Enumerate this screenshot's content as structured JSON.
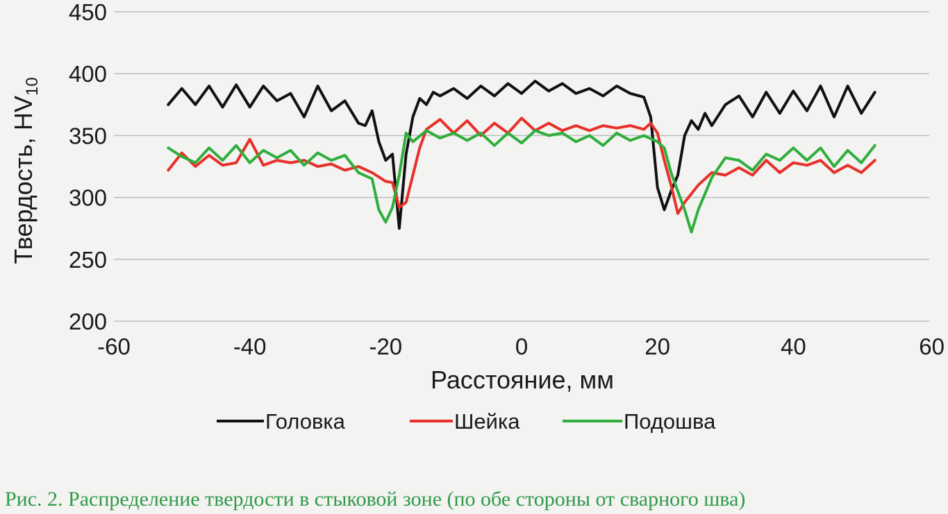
{
  "caption": "Рис. 2. Распределение твердости в стыковой зоне (по обе стороны от сварного шва)",
  "colors": {
    "Головка": "#111111",
    "Шейка": "#e8302a",
    "Подошва": "#2fae3c",
    "grid": "#bdbdbd",
    "caption": "#2f9a48"
  },
  "chart_data": {
    "type": "line",
    "title": "",
    "xlabel": "Расстояние, мм",
    "ylabel": "Твердость, HV",
    "ylabel_subscript": "10",
    "xlim": [
      -60,
      60
    ],
    "ylim": [
      200,
      450
    ],
    "x_ticks": [
      "-60",
      "-40",
      "-20",
      "0",
      "20",
      "40",
      "60"
    ],
    "y_ticks": [
      "200",
      "250",
      "300",
      "350",
      "400",
      "450"
    ],
    "grid": "horizontal",
    "legend_position": "bottom",
    "series": [
      {
        "name": "Головка",
        "x": [
          -52,
          -50,
          -48,
          -46,
          -44,
          -42,
          -40,
          -38,
          -36,
          -34,
          -32,
          -30,
          -28,
          -26,
          -24,
          -23,
          -22,
          -21,
          -20,
          -19,
          -18,
          -17,
          -16,
          -15,
          -14,
          -13,
          -12,
          -10,
          -8,
          -6,
          -4,
          -2,
          0,
          2,
          4,
          6,
          8,
          10,
          12,
          14,
          16,
          18,
          19,
          20,
          21,
          22,
          23,
          24,
          25,
          26,
          27,
          28,
          30,
          32,
          34,
          36,
          38,
          40,
          42,
          44,
          46,
          48,
          50,
          52
        ],
        "values": [
          375,
          388,
          375,
          390,
          373,
          391,
          373,
          390,
          378,
          384,
          365,
          390,
          370,
          378,
          360,
          358,
          370,
          345,
          330,
          335,
          275,
          335,
          365,
          380,
          375,
          385,
          382,
          388,
          380,
          390,
          382,
          392,
          384,
          394,
          386,
          392,
          384,
          388,
          382,
          390,
          384,
          381,
          365,
          308,
          290,
          305,
          318,
          350,
          362,
          355,
          368,
          358,
          375,
          382,
          365,
          385,
          368,
          386,
          370,
          390,
          365,
          390,
          368,
          385
        ]
      },
      {
        "name": "Шейка",
        "x": [
          -52,
          -50,
          -48,
          -46,
          -44,
          -42,
          -40,
          -38,
          -36,
          -34,
          -32,
          -30,
          -28,
          -26,
          -24,
          -22,
          -20,
          -19,
          -18,
          -17,
          -16,
          -15,
          -14,
          -12,
          -10,
          -8,
          -6,
          -4,
          -2,
          0,
          2,
          4,
          6,
          8,
          10,
          12,
          14,
          16,
          18,
          19,
          20,
          21,
          22,
          23,
          24,
          26,
          28,
          30,
          32,
          34,
          36,
          38,
          40,
          42,
          44,
          46,
          48,
          50,
          52
        ],
        "values": [
          322,
          336,
          325,
          334,
          326,
          328,
          347,
          326,
          330,
          328,
          330,
          325,
          327,
          322,
          325,
          320,
          313,
          312,
          292,
          296,
          318,
          340,
          355,
          363,
          352,
          362,
          350,
          360,
          352,
          364,
          354,
          360,
          354,
          358,
          354,
          358,
          356,
          358,
          355,
          360,
          352,
          330,
          310,
          287,
          296,
          310,
          320,
          318,
          324,
          318,
          330,
          320,
          328,
          326,
          330,
          320,
          326,
          320,
          330
        ]
      },
      {
        "name": "Подошва",
        "x": [
          -52,
          -50,
          -48,
          -46,
          -44,
          -42,
          -40,
          -38,
          -36,
          -34,
          -32,
          -30,
          -28,
          -26,
          -24,
          -22,
          -21,
          -20,
          -19,
          -18,
          -17,
          -16,
          -14,
          -12,
          -10,
          -8,
          -6,
          -4,
          -2,
          0,
          2,
          4,
          6,
          8,
          10,
          12,
          14,
          16,
          18,
          20,
          21,
          22,
          23,
          24,
          25,
          26,
          28,
          30,
          32,
          34,
          36,
          38,
          40,
          42,
          44,
          46,
          48,
          50,
          52
        ],
        "values": [
          340,
          333,
          328,
          340,
          330,
          342,
          328,
          338,
          332,
          338,
          326,
          336,
          330,
          334,
          320,
          315,
          290,
          280,
          292,
          318,
          352,
          345,
          354,
          348,
          352,
          346,
          352,
          342,
          352,
          344,
          354,
          350,
          352,
          345,
          350,
          342,
          352,
          346,
          350,
          345,
          340,
          320,
          305,
          290,
          272,
          290,
          316,
          332,
          330,
          322,
          335,
          330,
          340,
          330,
          340,
          325,
          338,
          328,
          342
        ]
      }
    ]
  }
}
